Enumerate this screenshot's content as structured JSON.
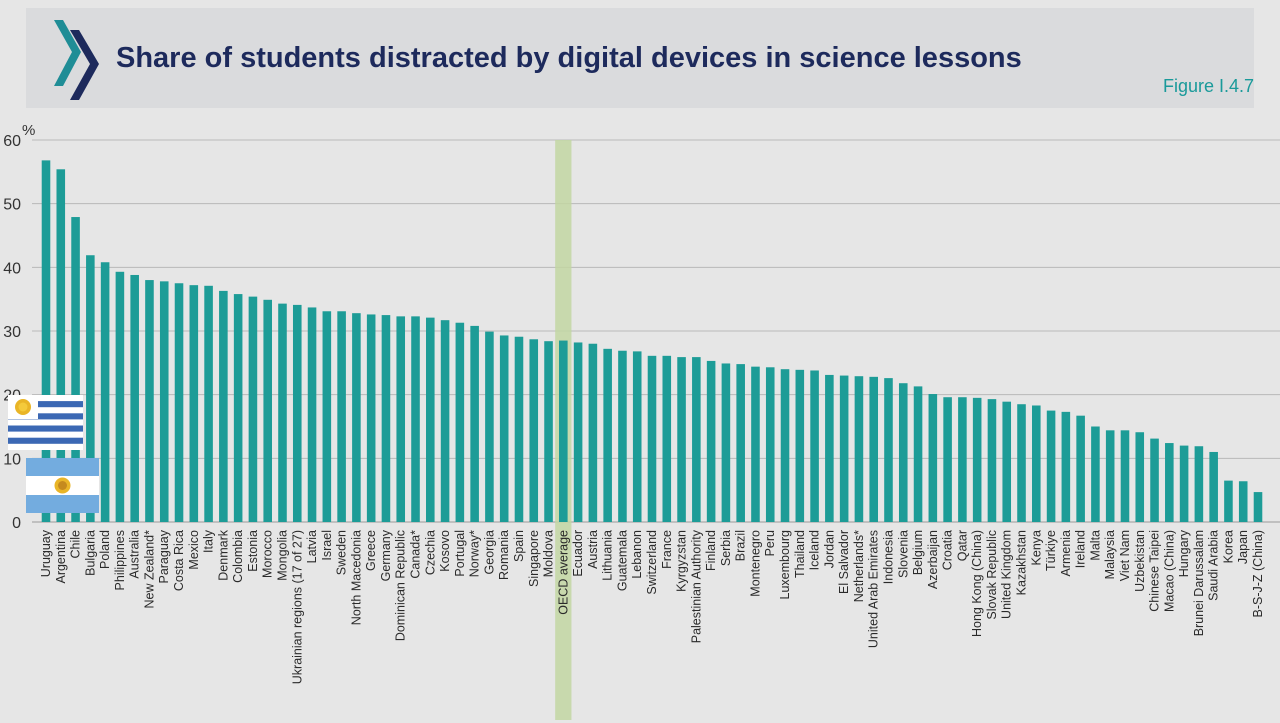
{
  "header": {
    "title": "Share of students distracted by digital devices in science lessons",
    "figure_label": "Figure I.4.7"
  },
  "colors": {
    "bar": "#1d9c97",
    "highlight": "#c2d6a2",
    "title": "#1d2a5c",
    "figure_label": "#1a9a9a"
  },
  "icons": {
    "logo": "oecd-chevron-logo-icon",
    "flag1": "uruguay-flag-icon",
    "flag2": "argentina-flag-icon"
  },
  "chart_data": {
    "type": "bar",
    "ylabel": "%",
    "ylim": [
      0,
      60
    ],
    "yticks": [
      0,
      10,
      20,
      30,
      40,
      50,
      60
    ],
    "grid": true,
    "highlight_category": "OECD average",
    "categories": [
      "Uruguay",
      "Argentina",
      "Chile",
      "Bulgaria",
      "Poland",
      "Philippines",
      "Australia",
      "New Zealand*",
      "Paraguay",
      "Costa Rica",
      "Mexico",
      "Italy",
      "Denmark",
      "Colombia",
      "Estonia",
      "Morocco",
      "Mongolia",
      "Ukrainian regions (17 of 27)",
      "Latvia",
      "Israel",
      "Sweden",
      "North Macedonia",
      "Greece",
      "Germany",
      "Dominican Republic",
      "Canada*",
      "Czechia",
      "Kosovo",
      "Portugal",
      "Norway*",
      "Georgia",
      "Romania",
      "Spain",
      "Singapore",
      "Moldova",
      "OECD average",
      "Ecuador",
      "Austria",
      "Lithuania",
      "Guatemala",
      "Lebanon",
      "Switzerland",
      "France",
      "Kyrgyzstan",
      "Palestinian Authority",
      "Finland",
      "Serbia",
      "Brazil",
      "Montenegro",
      "Peru",
      "Luxembourg",
      "Thailand",
      "Iceland",
      "Jordan",
      "El Salvador",
      "Netherlands*",
      "United Arab Emirates",
      "Indonesia",
      "Slovenia",
      "Belgium",
      "Azerbaijan",
      "Croatia",
      "Qatar",
      "Hong Kong (China)",
      "Slovak Republic",
      "United Kingdom",
      "Kazakhstan",
      "Kenya",
      "Türkiye",
      "Armenia",
      "Ireland",
      "Malta",
      "Malaysia",
      "Viet Nam",
      "Uzbekistan",
      "Chinese Taipei",
      "Macao (China)",
      "Hungary",
      "Brunei Darussalam",
      "Saudi Arabia",
      "Korea",
      "Japan",
      "B-S-J-Z (China)"
    ],
    "values": [
      56.8,
      55.4,
      47.9,
      41.9,
      40.8,
      39.3,
      38.8,
      38.0,
      37.8,
      37.5,
      37.2,
      37.1,
      36.3,
      35.8,
      35.4,
      34.9,
      34.3,
      34.1,
      33.7,
      33.1,
      33.1,
      32.8,
      32.6,
      32.5,
      32.3,
      32.3,
      32.1,
      31.7,
      31.3,
      30.8,
      29.9,
      29.3,
      29.1,
      28.7,
      28.4,
      28.5,
      28.2,
      28.0,
      27.2,
      26.9,
      26.8,
      26.1,
      26.1,
      25.9,
      25.9,
      25.3,
      24.9,
      24.8,
      24.4,
      24.3,
      24.0,
      23.9,
      23.8,
      23.1,
      23.0,
      22.9,
      22.8,
      22.6,
      21.8,
      21.3,
      20.1,
      19.6,
      19.6,
      19.5,
      19.3,
      18.9,
      18.5,
      18.3,
      17.5,
      17.3,
      16.7,
      15.0,
      14.4,
      14.4,
      14.1,
      13.1,
      12.4,
      12.0,
      11.9,
      11.0,
      6.5,
      6.4,
      4.7
    ]
  }
}
